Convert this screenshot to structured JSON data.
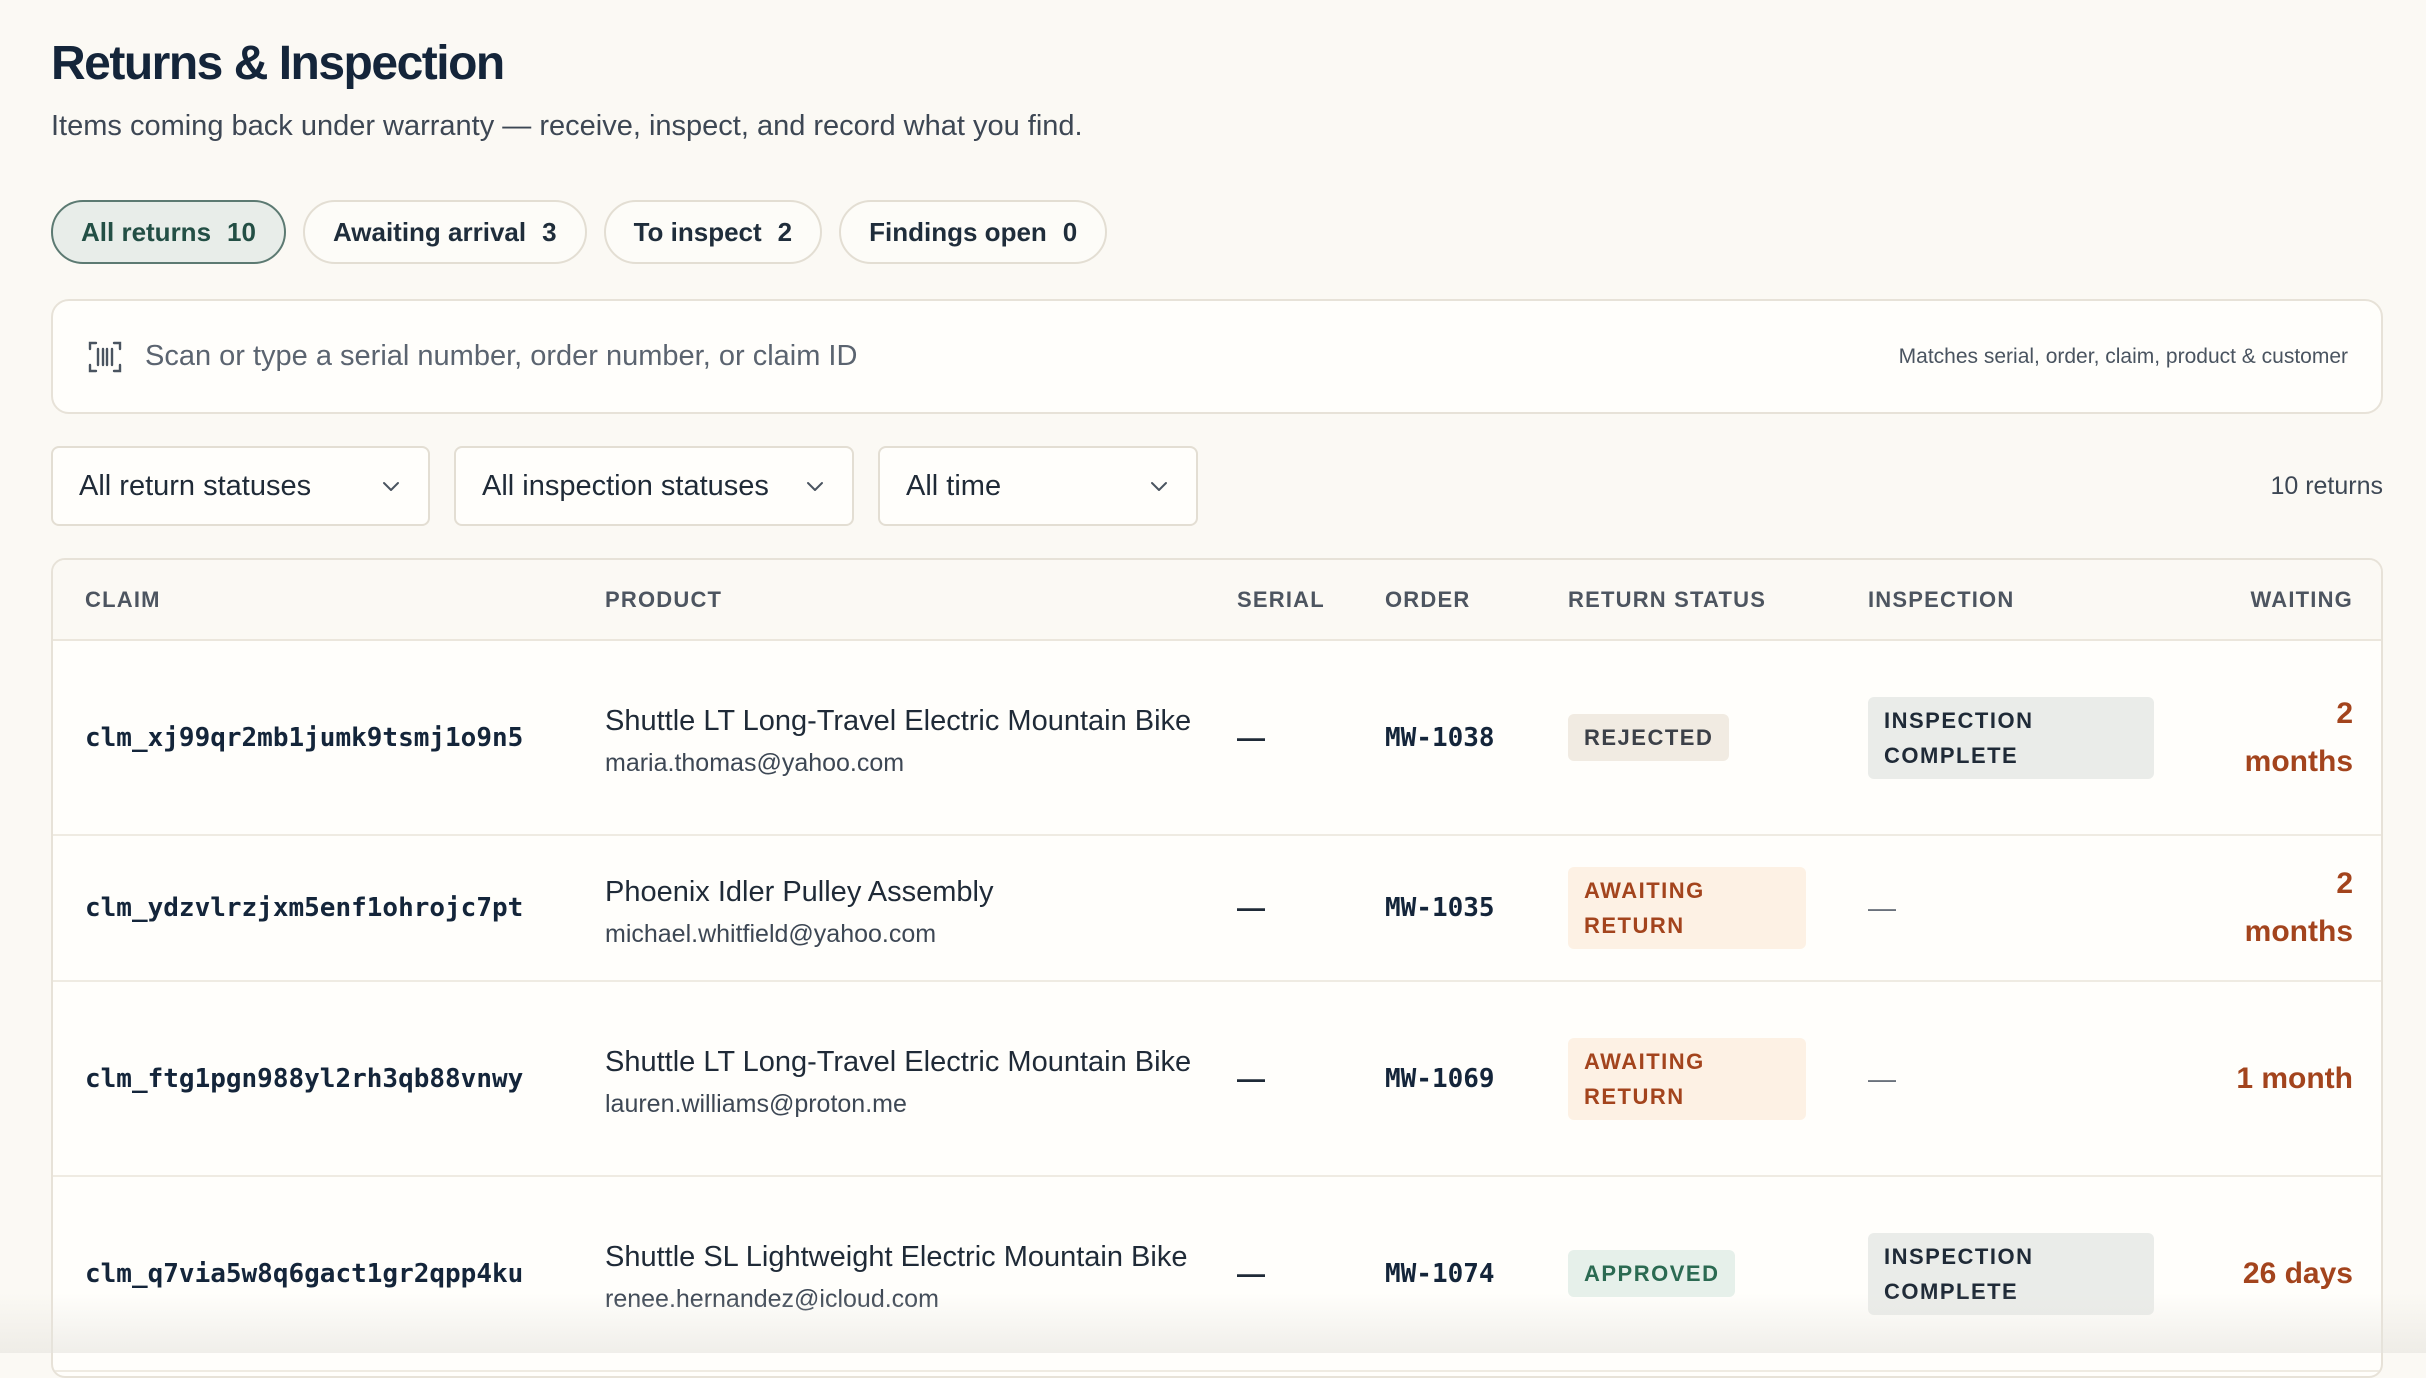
{
  "header": {
    "title": "Returns & Inspection",
    "subtitle": "Items coming back under warranty — receive, inspect, and record what you find."
  },
  "tabs": [
    {
      "label": "All returns",
      "count": "10",
      "active": true
    },
    {
      "label": "Awaiting arrival",
      "count": "3"
    },
    {
      "label": "To inspect",
      "count": "2"
    },
    {
      "label": "Findings open",
      "count": "0"
    }
  ],
  "search": {
    "placeholder": "Scan or type a serial number, order number, or claim ID",
    "hint": "Matches serial, order, claim, product & customer",
    "icon": "barcode-scan-icon"
  },
  "filters": [
    {
      "selected": "All return statuses"
    },
    {
      "selected": "All inspection statuses"
    },
    {
      "selected": "All time"
    }
  ],
  "result_count": "10 returns",
  "table": {
    "columns": [
      "CLAIM",
      "PRODUCT",
      "SERIAL",
      "ORDER",
      "RETURN STATUS",
      "INSPECTION",
      "WAITING"
    ],
    "rows": [
      {
        "claim": "clm_xj99qr2mb1jumk9tsmj1o9n5",
        "product": "Shuttle LT Long-Travel Electric Mountain Bike",
        "email": "maria.thomas@yahoo.com",
        "serial": "—",
        "order": "MW-1038",
        "return_status": "REJECTED",
        "inspection": "INSPECTION COMPLETE",
        "waiting": "2 months"
      },
      {
        "claim": "clm_ydzvlrzjxm5enf1ohrojc7pt",
        "product": "Phoenix Idler Pulley Assembly",
        "email": "michael.whitfield@yahoo.com",
        "serial": "—",
        "order": "MW-1035",
        "return_status": "AWAITING RETURN",
        "inspection": "—",
        "waiting": "2 months"
      },
      {
        "claim": "clm_ftg1pgn988yl2rh3qb88vnwy",
        "product": "Shuttle LT Long-Travel Electric Mountain Bike",
        "email": "lauren.williams@proton.me",
        "serial": "—",
        "order": "MW-1069",
        "return_status": "AWAITING RETURN",
        "inspection": "—",
        "waiting": "1 month"
      },
      {
        "claim": "clm_q7via5w8q6gact1gr2qpp4ku",
        "product": "Shuttle SL Lightweight Electric Mountain Bike",
        "email": "renee.hernandez@icloud.com",
        "serial": "—",
        "order": "MW-1074",
        "return_status": "APPROVED",
        "inspection": "INSPECTION COMPLETE",
        "waiting": "26 days"
      }
    ]
  },
  "colors": {
    "background": "#fbf9f4",
    "accent": "#234f45",
    "waiting": "#a3441d",
    "approved": "#2b6a52"
  }
}
